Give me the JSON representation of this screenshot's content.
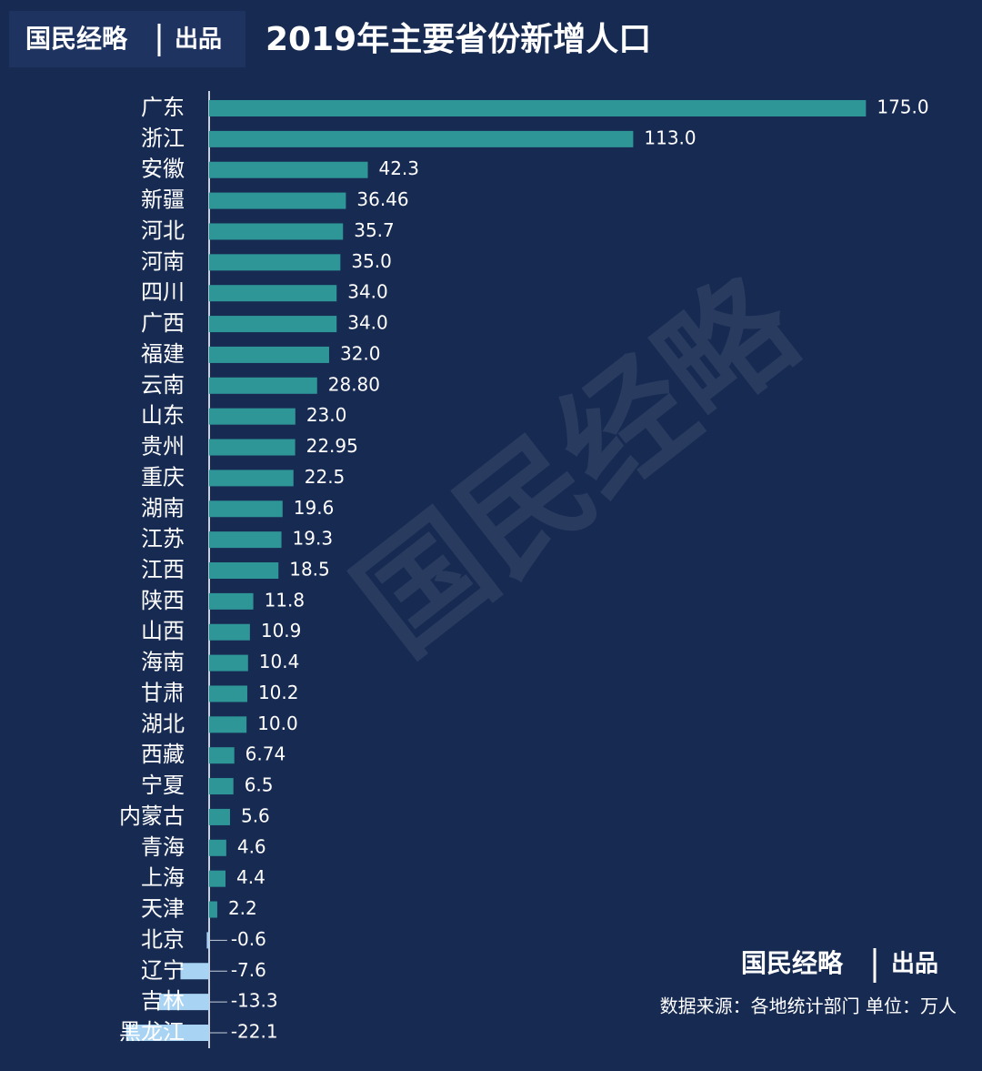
{
  "header": {
    "brand": "国民经略",
    "brand_suffix": "出品"
  },
  "chart_data": {
    "type": "bar",
    "orientation": "horizontal",
    "title": "2019年主要省份新增人口",
    "categories": [
      "广东",
      "浙江",
      "安徽",
      "新疆",
      "河北",
      "河南",
      "四川",
      "广西",
      "福建",
      "云南",
      "山东",
      "贵州",
      "重庆",
      "湖南",
      "江苏",
      "江西",
      "陕西",
      "山西",
      "海南",
      "甘肃",
      "湖北",
      "西藏",
      "宁夏",
      "内蒙古",
      "青海",
      "上海",
      "天津",
      "北京",
      "辽宁",
      "吉林",
      "黑龙江"
    ],
    "values": [
      175,
      113,
      42.3,
      36.46,
      35.7,
      35,
      34,
      34,
      32,
      28.8,
      23,
      22.95,
      22.5,
      19.6,
      19.3,
      18.5,
      11.8,
      10.9,
      10.4,
      10.2,
      10,
      6.74,
      6.5,
      5.6,
      4.6,
      4.4,
      2.2,
      -0.6,
      -7.6,
      -13.3,
      -22.1
    ],
    "value_labels": [
      "175.0",
      "113.0",
      "42.3",
      "36.46",
      "35.7",
      "35.0",
      "34.0",
      "34.0",
      "32.0",
      "28.80",
      "23.0",
      "22.95",
      "22.5",
      "19.6",
      "19.3",
      "18.5",
      "11.8",
      "10.9",
      "10.4",
      "10.2",
      "10.0",
      "6.74",
      "6.5",
      "5.6",
      "4.6",
      "4.4",
      "2.2",
      "-0.6",
      "-7.6",
      "-13.3",
      "-22.1"
    ],
    "color": "#2f9698",
    "negative_color": "#a9d3f3",
    "xlim": [
      -30,
      180
    ],
    "source": "数据来源：各地统计部门 单位：万人"
  }
}
